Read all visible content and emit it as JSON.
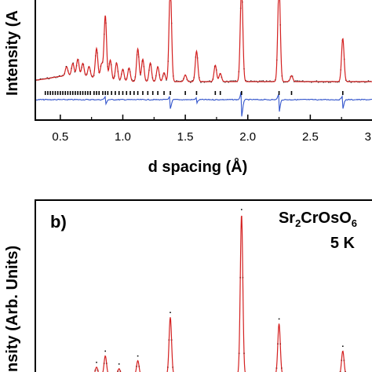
{
  "chart_data": [
    {
      "type": "line",
      "panel_label": "",
      "xlabel": "d spacing (Å)",
      "ylabel": "Intensity (A",
      "xlim": [
        0.3,
        3.0
      ],
      "x_ticks": [
        "0.5",
        "1.0",
        "1.5",
        "2.0",
        "2.5",
        "3.0"
      ],
      "legend": [],
      "colors": {
        "calc": "#d42020",
        "obs": "#111111",
        "diff": "#3355cc",
        "ticks": "#000000"
      },
      "peaks": [
        {
          "d": 0.55,
          "h": 0.12
        },
        {
          "d": 0.6,
          "h": 0.16
        },
        {
          "d": 0.64,
          "h": 0.22
        },
        {
          "d": 0.68,
          "h": 0.17
        },
        {
          "d": 0.73,
          "h": 0.14
        },
        {
          "d": 0.79,
          "h": 0.4
        },
        {
          "d": 0.83,
          "h": 0.2
        },
        {
          "d": 0.86,
          "h": 0.86
        },
        {
          "d": 0.9,
          "h": 0.27
        },
        {
          "d": 0.95,
          "h": 0.24
        },
        {
          "d": 1.0,
          "h": 0.16
        },
        {
          "d": 1.05,
          "h": 0.18
        },
        {
          "d": 1.12,
          "h": 0.44
        },
        {
          "d": 1.16,
          "h": 0.3
        },
        {
          "d": 1.22,
          "h": 0.25
        },
        {
          "d": 1.28,
          "h": 0.2
        },
        {
          "d": 1.33,
          "h": 0.12
        },
        {
          "d": 1.38,
          "h": 1.3
        },
        {
          "d": 1.5,
          "h": 0.09
        },
        {
          "d": 1.59,
          "h": 0.41
        },
        {
          "d": 1.74,
          "h": 0.22
        },
        {
          "d": 1.78,
          "h": 0.11
        },
        {
          "d": 1.95,
          "h": 1.3
        },
        {
          "d": 2.25,
          "h": 1.3
        },
        {
          "d": 2.35,
          "h": 0.08
        },
        {
          "d": 2.76,
          "h": 0.58
        }
      ],
      "reflection_ticks": [
        0.38,
        0.4,
        0.42,
        0.44,
        0.46,
        0.48,
        0.5,
        0.52,
        0.54,
        0.56,
        0.58,
        0.6,
        0.62,
        0.64,
        0.66,
        0.68,
        0.7,
        0.72,
        0.74,
        0.77,
        0.79,
        0.81,
        0.84,
        0.86,
        0.88,
        0.91,
        0.94,
        0.97,
        1.0,
        1.03,
        1.06,
        1.09,
        1.12,
        1.16,
        1.2,
        1.24,
        1.28,
        1.33,
        1.38,
        1.5,
        1.59,
        1.74,
        1.78,
        1.95,
        2.25,
        2.35,
        2.76
      ],
      "difference_dips": [
        {
          "d": 1.38,
          "depth": 0.5
        },
        {
          "d": 1.95,
          "depth": 1.0
        },
        {
          "d": 2.25,
          "depth": 0.7
        },
        {
          "d": 2.76,
          "depth": 0.5
        },
        {
          "d": 0.86,
          "depth": 0.3
        },
        {
          "d": 1.59,
          "depth": 0.2
        }
      ]
    },
    {
      "type": "line",
      "panel_label": "b)",
      "compound": {
        "base": "Sr",
        "sub1": "2",
        "mid": "CrOsO",
        "sub2": "6"
      },
      "temperature": "5 K",
      "ylabel": "nsity (Arb. Units)",
      "xlim": [
        0.3,
        3.0
      ],
      "legend": [],
      "colors": {
        "calc": "#d42020",
        "obs": "#111111"
      },
      "peaks": [
        {
          "d": 0.79,
          "h": 0.05
        },
        {
          "d": 0.86,
          "h": 0.12
        },
        {
          "d": 0.97,
          "h": 0.04
        },
        {
          "d": 1.12,
          "h": 0.09
        },
        {
          "d": 1.38,
          "h": 0.36
        },
        {
          "d": 1.95,
          "h": 1.0
        },
        {
          "d": 2.25,
          "h": 0.32
        },
        {
          "d": 2.76,
          "h": 0.15
        }
      ]
    }
  ]
}
